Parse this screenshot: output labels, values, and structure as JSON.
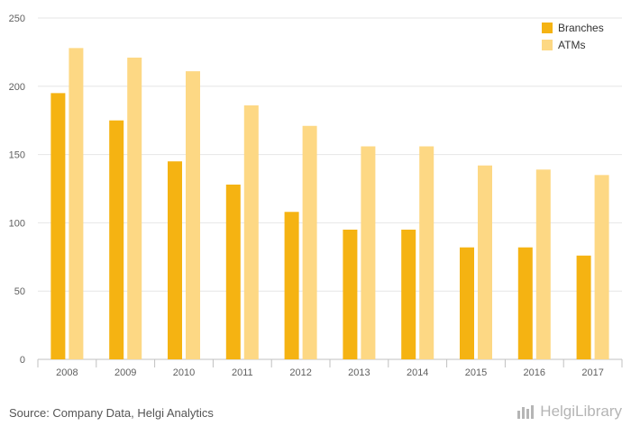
{
  "chart_data": {
    "type": "bar",
    "categories": [
      "2008",
      "2009",
      "2010",
      "2011",
      "2012",
      "2013",
      "2014",
      "2015",
      "2016",
      "2017"
    ],
    "series": [
      {
        "name": "Branches",
        "color": "#f5b312",
        "values": [
          195,
          175,
          145,
          128,
          108,
          95,
          95,
          82,
          82,
          76
        ]
      },
      {
        "name": "ATMs",
        "color": "#fdd884",
        "values": [
          228,
          221,
          211,
          186,
          171,
          156,
          156,
          142,
          139,
          135
        ]
      }
    ],
    "yticks": [
      "0",
      "50",
      "100",
      "150",
      "200",
      "250"
    ],
    "ylim": [
      0,
      250
    ],
    "grid": true,
    "legend_position": "top-right",
    "title": "",
    "xlabel": "",
    "ylabel": ""
  },
  "footer": {
    "source": "Source: Company Data, Helgi Analytics",
    "brand": "HelgiLibrary",
    "brand_icon": "helgi-logo-icon"
  }
}
